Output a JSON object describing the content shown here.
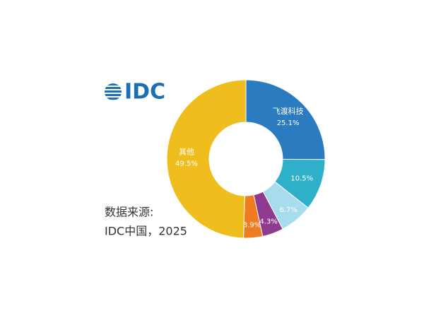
{
  "chart_data": {
    "type": "pie",
    "logo": "IDC",
    "source": [
      "数据来源:",
      "IDC中国，2025"
    ],
    "categories": [
      "飞渡科技",
      null,
      null,
      null,
      null,
      "其他"
    ],
    "values": [
      25.1,
      10.5,
      6.7,
      4.3,
      3.9,
      49.5
    ],
    "value_labels": [
      "25.1%",
      "10.5%",
      "6.7%",
      "4.3%",
      "3.9%",
      "49.5%"
    ],
    "colors": [
      "#2a7bc0",
      "#2fb0c9",
      "#a6dcec",
      "#8e3a8e",
      "#f07c22",
      "#efbe1e"
    ]
  }
}
